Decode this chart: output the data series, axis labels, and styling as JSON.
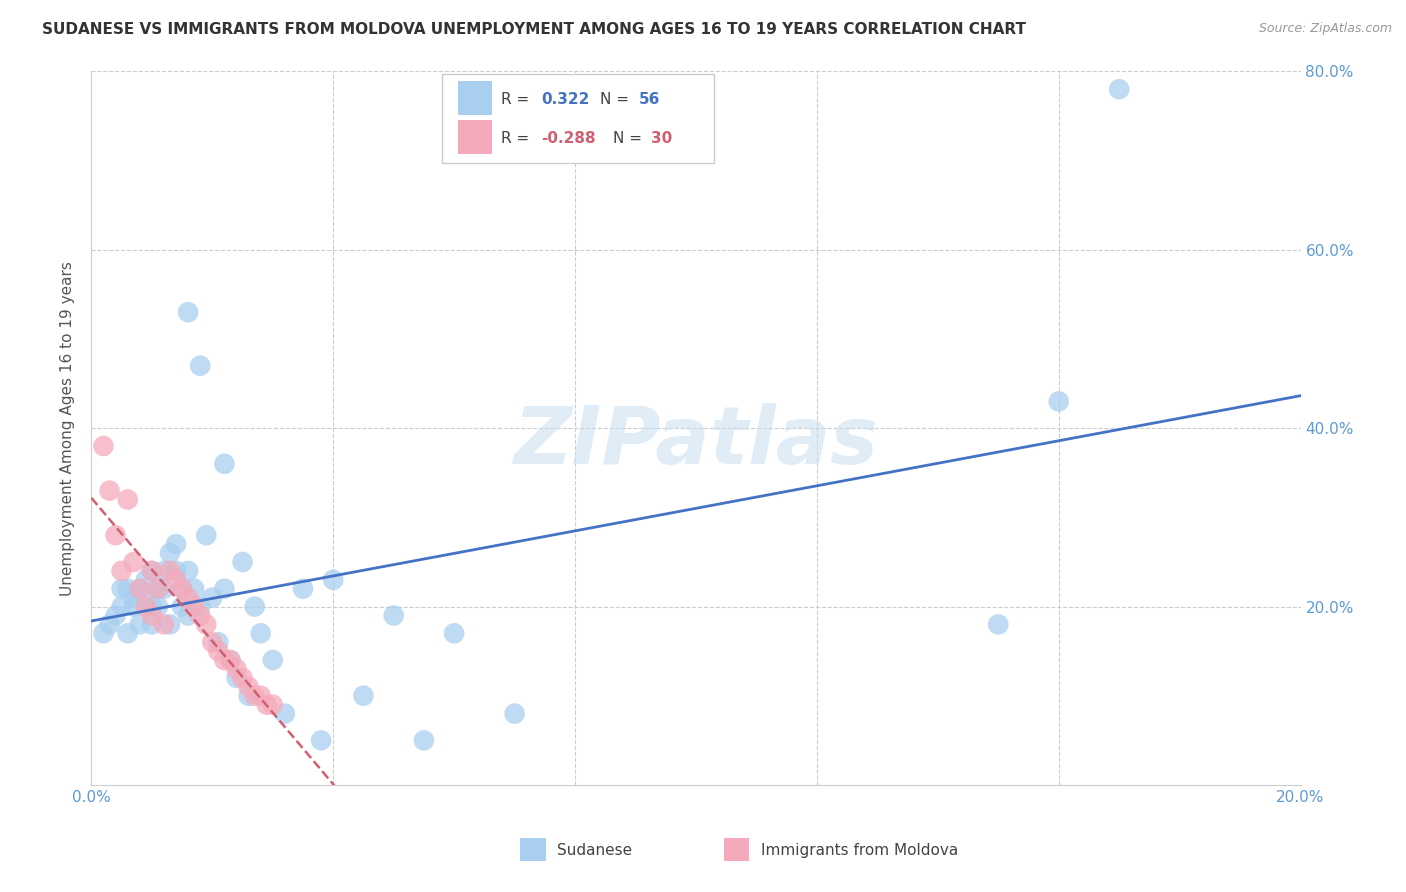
{
  "title": "SUDANESE VS IMMIGRANTS FROM MOLDOVA UNEMPLOYMENT AMONG AGES 16 TO 19 YEARS CORRELATION CHART",
  "source": "Source: ZipAtlas.com",
  "ylabel": "Unemployment Among Ages 16 to 19 years",
  "xlim": [
    0.0,
    0.2
  ],
  "ylim": [
    0.0,
    0.8
  ],
  "blue_R": 0.322,
  "blue_N": 56,
  "pink_R": -0.288,
  "pink_N": 30,
  "blue_color": "#A8CFF0",
  "pink_color": "#F5AABB",
  "blue_line_color": "#4472C4",
  "pink_line_color": "#D06070",
  "watermark": "ZIPatlas",
  "sudanese_x": [
    0.002,
    0.003,
    0.004,
    0.005,
    0.005,
    0.006,
    0.006,
    0.007,
    0.007,
    0.008,
    0.008,
    0.009,
    0.009,
    0.01,
    0.01,
    0.01,
    0.011,
    0.011,
    0.012,
    0.012,
    0.013,
    0.013,
    0.014,
    0.014,
    0.015,
    0.015,
    0.016,
    0.016,
    0.017,
    0.018,
    0.019,
    0.02,
    0.021,
    0.022,
    0.023,
    0.024,
    0.025,
    0.026,
    0.027,
    0.028,
    0.03,
    0.032,
    0.035,
    0.038,
    0.04,
    0.045,
    0.05,
    0.055,
    0.06,
    0.07,
    0.016,
    0.018,
    0.022,
    0.15,
    0.16,
    0.17
  ],
  "sudanese_y": [
    0.17,
    0.18,
    0.19,
    0.2,
    0.22,
    0.17,
    0.22,
    0.21,
    0.2,
    0.18,
    0.22,
    0.23,
    0.21,
    0.2,
    0.18,
    0.24,
    0.22,
    0.2,
    0.24,
    0.22,
    0.18,
    0.26,
    0.27,
    0.24,
    0.22,
    0.2,
    0.19,
    0.24,
    0.22,
    0.2,
    0.28,
    0.21,
    0.16,
    0.22,
    0.14,
    0.12,
    0.25,
    0.1,
    0.2,
    0.17,
    0.14,
    0.08,
    0.22,
    0.05,
    0.23,
    0.1,
    0.19,
    0.05,
    0.17,
    0.08,
    0.53,
    0.47,
    0.36,
    0.18,
    0.43,
    0.78
  ],
  "moldova_x": [
    0.002,
    0.003,
    0.004,
    0.005,
    0.006,
    0.007,
    0.008,
    0.009,
    0.01,
    0.01,
    0.011,
    0.012,
    0.013,
    0.014,
    0.015,
    0.016,
    0.017,
    0.018,
    0.019,
    0.02,
    0.021,
    0.022,
    0.023,
    0.024,
    0.025,
    0.026,
    0.027,
    0.028,
    0.029,
    0.03
  ],
  "moldova_y": [
    0.38,
    0.33,
    0.28,
    0.24,
    0.32,
    0.25,
    0.22,
    0.2,
    0.19,
    0.24,
    0.22,
    0.18,
    0.24,
    0.23,
    0.22,
    0.21,
    0.2,
    0.19,
    0.18,
    0.16,
    0.15,
    0.14,
    0.14,
    0.13,
    0.12,
    0.11,
    0.1,
    0.1,
    0.09,
    0.09
  ]
}
